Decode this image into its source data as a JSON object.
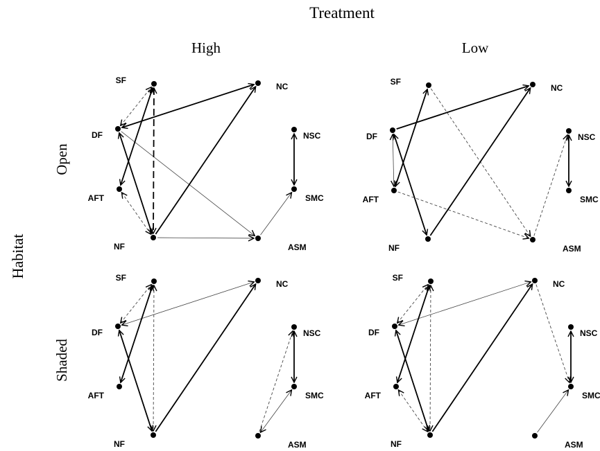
{
  "title": "Treatment",
  "columns": [
    "High",
    "Low"
  ],
  "row_axis_label": "Habitat",
  "rows": [
    "Open",
    "Shaded"
  ],
  "node_labels": [
    "SF",
    "DF",
    "AFT",
    "NF",
    "NC",
    "NSC",
    "SMC",
    "ASM"
  ],
  "colors": {
    "ink": "#000000",
    "thin_line": "#444444"
  },
  "panels": [
    {
      "column": "High",
      "row": "Open",
      "edges": [
        {
          "from": "DF",
          "to": "SF",
          "style": "dashed-thin",
          "arrow": "both"
        },
        {
          "from": "DF",
          "to": "NC",
          "style": "solid-thick",
          "arrow": "both"
        },
        {
          "from": "DF",
          "to": "NF",
          "style": "solid-thick",
          "arrow": "both"
        },
        {
          "from": "DF",
          "to": "ASM",
          "style": "solid-thin",
          "arrow": "end"
        },
        {
          "from": "SF",
          "to": "AFT",
          "style": "solid-thick",
          "arrow": "both"
        },
        {
          "from": "SF",
          "to": "NF",
          "style": "dashed-thick",
          "arrow": "both"
        },
        {
          "from": "AFT",
          "to": "NF",
          "style": "dashed-thin",
          "arrow": "both"
        },
        {
          "from": "NF",
          "to": "NC",
          "style": "solid-thick",
          "arrow": "end"
        },
        {
          "from": "NF",
          "to": "ASM",
          "style": "solid-thin",
          "arrow": "end"
        },
        {
          "from": "NSC",
          "to": "SMC",
          "style": "solid-thick",
          "arrow": "both"
        },
        {
          "from": "ASM",
          "to": "SMC",
          "style": "solid-thin",
          "arrow": "end"
        }
      ]
    },
    {
      "column": "Low",
      "row": "Open",
      "edges": [
        {
          "from": "DF",
          "to": "NC",
          "style": "solid-thick",
          "arrow": "end"
        },
        {
          "from": "DF",
          "to": "NF",
          "style": "solid-thick",
          "arrow": "both"
        },
        {
          "from": "DF",
          "to": "AFT",
          "style": "solid-thin",
          "arrow": "both"
        },
        {
          "from": "SF",
          "to": "AFT",
          "style": "solid-thick",
          "arrow": "both"
        },
        {
          "from": "SF",
          "to": "ASM",
          "style": "dashed-thin",
          "arrow": "end"
        },
        {
          "from": "AFT",
          "to": "ASM",
          "style": "dashed-thin",
          "arrow": "end"
        },
        {
          "from": "NF",
          "to": "NC",
          "style": "solid-thick",
          "arrow": "end"
        },
        {
          "from": "NSC",
          "to": "SMC",
          "style": "solid-thick",
          "arrow": "both"
        },
        {
          "from": "ASM",
          "to": "NSC",
          "style": "dashed-thin",
          "arrow": "end"
        }
      ]
    },
    {
      "column": "High",
      "row": "Shaded",
      "edges": [
        {
          "from": "DF",
          "to": "SF",
          "style": "dashed-thin",
          "arrow": "both"
        },
        {
          "from": "DF",
          "to": "NC",
          "style": "solid-thin",
          "arrow": "both"
        },
        {
          "from": "DF",
          "to": "NF",
          "style": "solid-thick",
          "arrow": "both"
        },
        {
          "from": "SF",
          "to": "AFT",
          "style": "solid-thick",
          "arrow": "both"
        },
        {
          "from": "SF",
          "to": "NF",
          "style": "dashed-thin",
          "arrow": "both"
        },
        {
          "from": "NF",
          "to": "NC",
          "style": "solid-thick",
          "arrow": "end"
        },
        {
          "from": "NSC",
          "to": "SMC",
          "style": "solid-thick",
          "arrow": "both"
        },
        {
          "from": "ASM",
          "to": "NSC",
          "style": "dashed-thin",
          "arrow": "end"
        },
        {
          "from": "ASM",
          "to": "SMC",
          "style": "solid-thin",
          "arrow": "both"
        }
      ]
    },
    {
      "column": "Low",
      "row": "Shaded",
      "edges": [
        {
          "from": "DF",
          "to": "SF",
          "style": "dashed-thin",
          "arrow": "both"
        },
        {
          "from": "DF",
          "to": "NC",
          "style": "solid-thin",
          "arrow": "both"
        },
        {
          "from": "DF",
          "to": "NF",
          "style": "solid-thick",
          "arrow": "both"
        },
        {
          "from": "SF",
          "to": "AFT",
          "style": "solid-thick",
          "arrow": "both"
        },
        {
          "from": "SF",
          "to": "NF",
          "style": "dashed-thin",
          "arrow": "both"
        },
        {
          "from": "AFT",
          "to": "NF",
          "style": "dashed-thin",
          "arrow": "both"
        },
        {
          "from": "NF",
          "to": "NC",
          "style": "solid-thick",
          "arrow": "end"
        },
        {
          "from": "NC",
          "to": "SMC",
          "style": "dashed-thin",
          "arrow": "end"
        },
        {
          "from": "NSC",
          "to": "SMC",
          "style": "solid-thick",
          "arrow": "both"
        },
        {
          "from": "ASM",
          "to": "SMC",
          "style": "solid-thin",
          "arrow": "end"
        }
      ]
    }
  ]
}
